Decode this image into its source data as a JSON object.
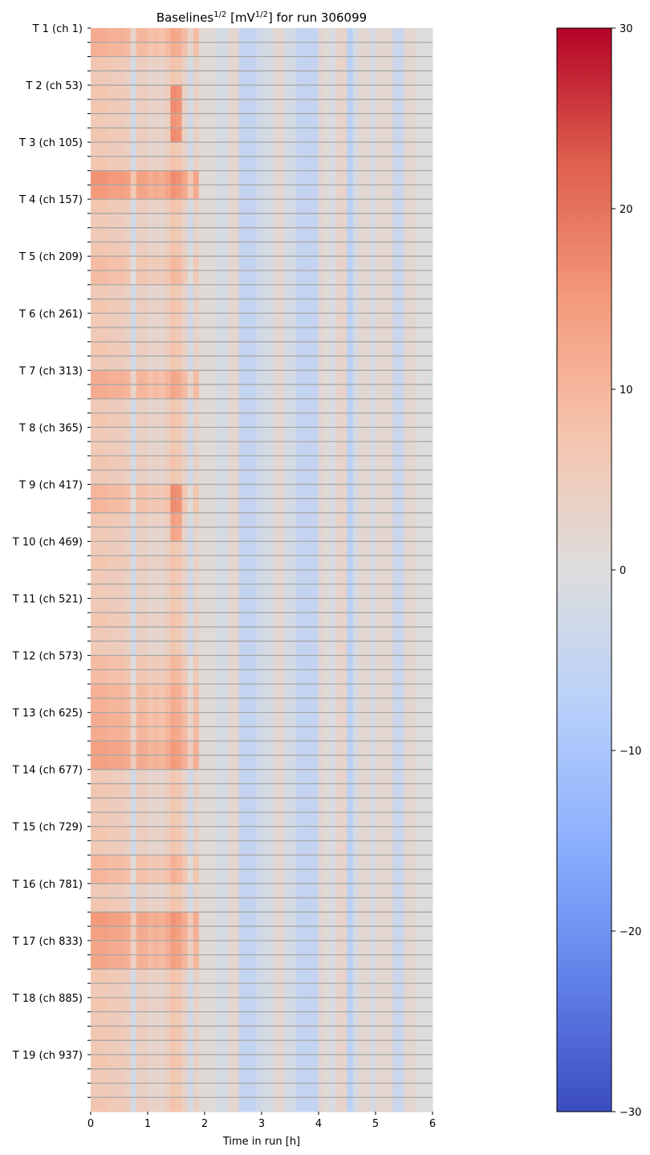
{
  "chart_data": {
    "type": "heatmap",
    "title": {
      "main": "Baselines",
      "sup1": "1/2",
      "mid": " [mV",
      "sup2": "1/2",
      "end": "] for run 306099"
    },
    "xlabel": "Time in run [h]",
    "ylabel": "",
    "xlim": [
      0,
      6
    ],
    "x_ticks": [
      "0",
      "1",
      "2",
      "3",
      "4",
      "5",
      "6"
    ],
    "y_tick_labels": [
      "T 1 (ch 1)",
      "T 2 (ch 53)",
      "T 3 (ch 105)",
      "T 4 (ch 157)",
      "T 5 (ch 209)",
      "T 6 (ch 261)",
      "T 7 (ch 313)",
      "T 8 (ch 365)",
      "T 9 (ch 417)",
      "T 10 (ch 469)",
      "T 11 (ch 521)",
      "T 12 (ch 573)",
      "T 13 (ch 625)",
      "T 14 (ch 677)",
      "T 15 (ch 729)",
      "T 16 (ch 781)",
      "T 17 (ch 833)",
      "T 18 (ch 885)",
      "T 19 (ch 937)"
    ],
    "channels_per_minor_tick": 13,
    "channel_groups": 76,
    "time_bin_h": 0.1,
    "grid": "horizontal lines at every minor y tick",
    "colormap": "coolwarm",
    "colorbar": {
      "range": [
        -30,
        30
      ],
      "ticks": [
        "30",
        "20",
        "10",
        "0",
        "−10",
        "−20",
        "−30"
      ],
      "tick_values": [
        30,
        20,
        10,
        0,
        -10,
        -20,
        -30
      ]
    },
    "time_profile": [
      6,
      6,
      6,
      5,
      5,
      5,
      4,
      -3,
      4,
      4,
      2,
      3,
      2,
      4,
      7,
      6,
      3,
      -3,
      3,
      1,
      1,
      1,
      -2,
      -2,
      2,
      2,
      -5,
      -5,
      -5,
      -3,
      -2,
      -2,
      2,
      2,
      -2,
      -2,
      -5,
      -5,
      -5,
      -5,
      2,
      1,
      -1,
      3,
      3,
      -7,
      -2,
      2,
      2,
      -2,
      2,
      2,
      2,
      -4,
      -4,
      2,
      2,
      0,
      1,
      0
    ],
    "early_excess_until_h": 1.9,
    "group_early_excess": [
      6,
      5,
      1,
      0,
      1,
      1,
      0,
      1,
      0,
      1,
      10,
      9,
      1,
      0,
      0,
      1,
      3,
      3,
      0,
      1,
      0,
      0,
      1,
      0,
      6,
      6,
      0,
      1,
      0,
      0,
      1,
      0,
      4,
      4,
      1,
      0,
      0,
      1,
      0,
      0,
      0,
      1,
      0,
      0,
      3,
      3,
      5,
      5,
      6,
      6,
      8,
      8,
      0,
      1,
      0,
      0,
      1,
      0,
      4,
      4,
      0,
      1,
      9,
      8,
      7,
      7,
      1,
      0,
      1,
      0,
      1,
      0,
      1,
      0,
      0,
      1
    ],
    "spikes": [
      {
        "groups": [
          4,
          5,
          6,
          7
        ],
        "t_h": 1.45,
        "value": 9
      },
      {
        "groups": [
          32,
          33,
          34,
          35
        ],
        "t_h": 1.45,
        "value": 6
      }
    ]
  }
}
